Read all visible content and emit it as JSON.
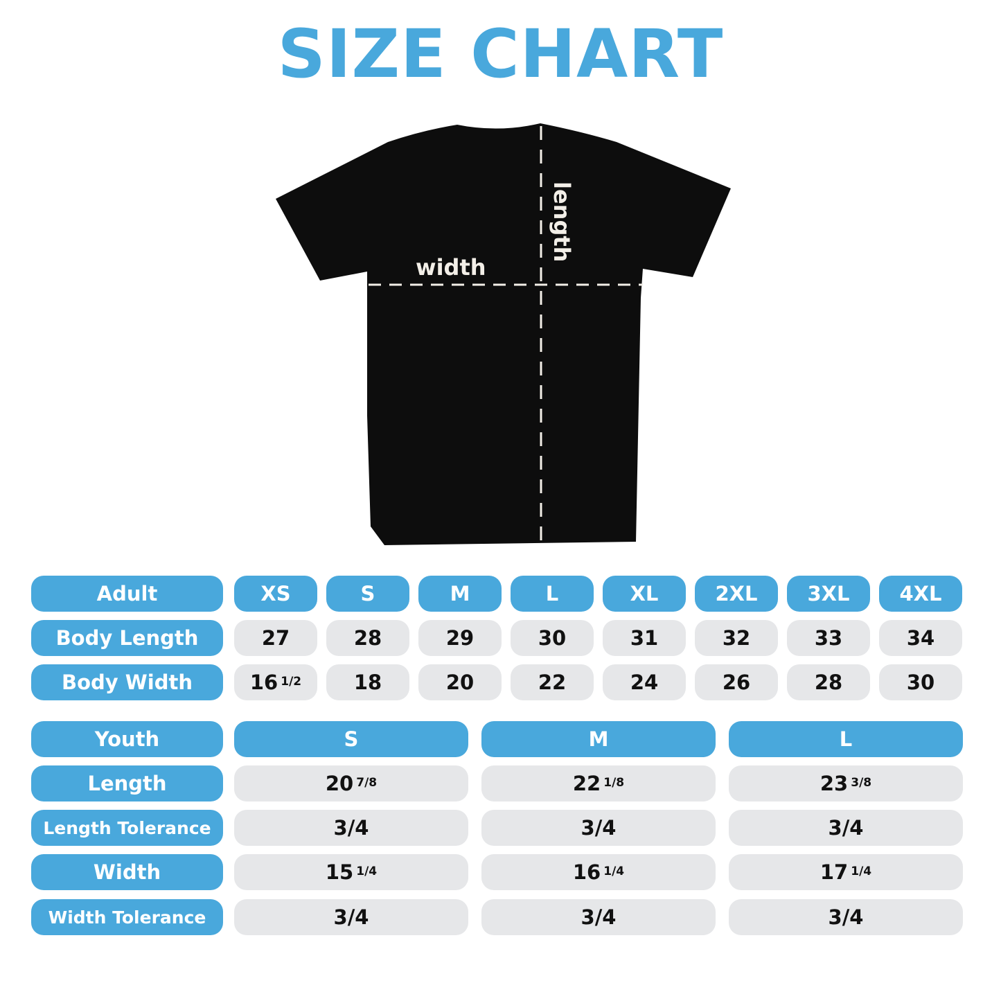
{
  "title": "SIZE CHART",
  "colors": {
    "accent": "#49a8dc",
    "cell": "#e6e7e9",
    "shirt": "#0d0d0d"
  },
  "diagram": {
    "width_label": "width",
    "length_label": "length"
  },
  "adult": {
    "header": "Adult",
    "sizes": [
      "XS",
      "S",
      "M",
      "L",
      "XL",
      "2XL",
      "3XL",
      "4XL"
    ],
    "rows": [
      {
        "label": "Body Length",
        "values": [
          {
            "whole": "27",
            "frac": ""
          },
          {
            "whole": "28",
            "frac": ""
          },
          {
            "whole": "29",
            "frac": ""
          },
          {
            "whole": "30",
            "frac": ""
          },
          {
            "whole": "31",
            "frac": ""
          },
          {
            "whole": "32",
            "frac": ""
          },
          {
            "whole": "33",
            "frac": ""
          },
          {
            "whole": "34",
            "frac": ""
          }
        ]
      },
      {
        "label": "Body Width",
        "values": [
          {
            "whole": "16",
            "frac": "1/2"
          },
          {
            "whole": "18",
            "frac": ""
          },
          {
            "whole": "20",
            "frac": ""
          },
          {
            "whole": "22",
            "frac": ""
          },
          {
            "whole": "24",
            "frac": ""
          },
          {
            "whole": "26",
            "frac": ""
          },
          {
            "whole": "28",
            "frac": ""
          },
          {
            "whole": "30",
            "frac": ""
          }
        ]
      }
    ]
  },
  "youth": {
    "header": "Youth",
    "sizes": [
      "S",
      "M",
      "L"
    ],
    "rows": [
      {
        "label": "Length",
        "values": [
          {
            "whole": "20",
            "frac": "7/8"
          },
          {
            "whole": "22",
            "frac": "1/8"
          },
          {
            "whole": "23",
            "frac": "3/8"
          }
        ]
      },
      {
        "label": "Length Tolerance",
        "values": [
          {
            "whole": "3/4",
            "frac": ""
          },
          {
            "whole": "3/4",
            "frac": ""
          },
          {
            "whole": "3/4",
            "frac": ""
          }
        ]
      },
      {
        "label": "Width",
        "values": [
          {
            "whole": "15",
            "frac": "1/4"
          },
          {
            "whole": "16",
            "frac": "1/4"
          },
          {
            "whole": "17",
            "frac": "1/4"
          }
        ]
      },
      {
        "label": "Width Tolerance",
        "values": [
          {
            "whole": "3/4",
            "frac": ""
          },
          {
            "whole": "3/4",
            "frac": ""
          },
          {
            "whole": "3/4",
            "frac": ""
          }
        ]
      }
    ]
  }
}
